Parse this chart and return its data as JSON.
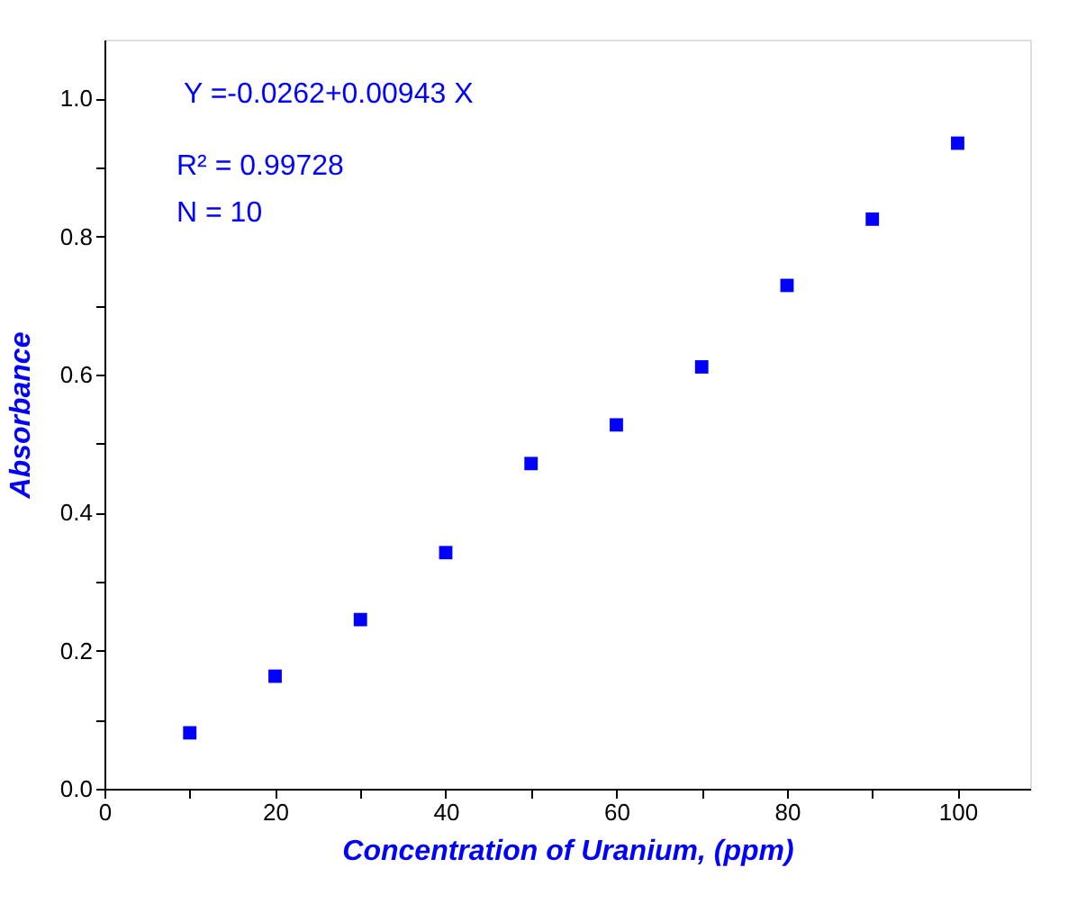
{
  "chart_data": {
    "type": "scatter",
    "xlabel": "Concentration of Uranium, (ppm)",
    "ylabel": "Absorbance",
    "x": [
      10,
      20,
      30,
      40,
      50,
      60,
      70,
      80,
      90,
      100
    ],
    "series": [
      {
        "color": "#0000ff",
        "values": [
          0.081,
          0.163,
          0.245,
          0.342,
          0.471,
          0.527,
          0.611,
          0.729,
          0.825,
          0.935
        ]
      }
    ],
    "marker": "square",
    "legend": false,
    "grid": false,
    "xlim": [
      0,
      108.5
    ],
    "ylim": [
      0,
      1.085
    ],
    "xticks": [
      0,
      {
        "value": 10,
        "label": null
      },
      20,
      {
        "value": 30,
        "label": null
      },
      40,
      {
        "value": 50,
        "label": null
      },
      60,
      {
        "value": 70,
        "label": null
      },
      80,
      {
        "value": 90,
        "label": null
      },
      100
    ],
    "yticks": [
      {
        "value": 0,
        "label": "0.0"
      },
      {
        "value": 0.1,
        "label": null
      },
      0.2,
      {
        "value": 0.3,
        "label": null
      },
      0.4,
      {
        "value": 0.5,
        "label": null
      },
      0.6,
      {
        "value": 0.7,
        "label": null
      },
      0.8,
      {
        "value": 0.9,
        "label": null
      },
      {
        "value": 1,
        "label": "1.0"
      }
    ],
    "annotations": [
      "Y =-0.0262+0.00943 X",
      "R² = 0.99728",
      "N  = 10"
    ]
  }
}
